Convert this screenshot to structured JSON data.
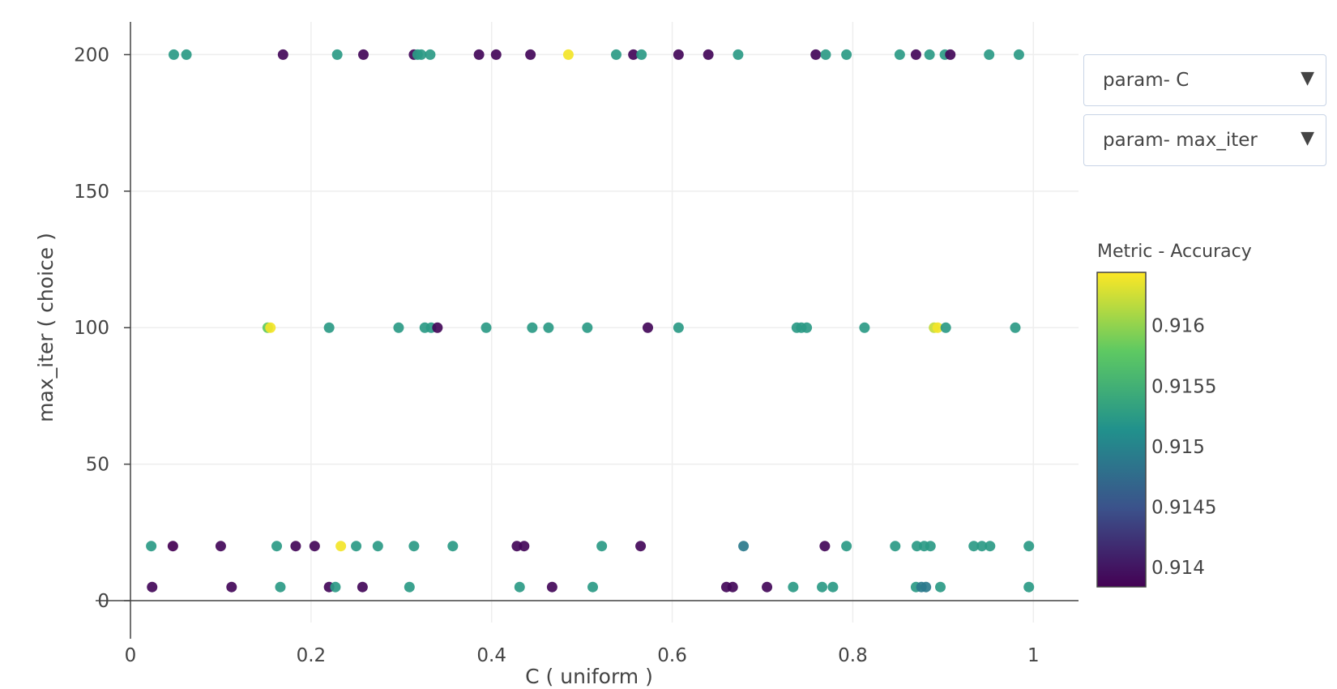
{
  "dropdowns": [
    {
      "label": "param- C",
      "caret": "▼"
    },
    {
      "label": "param- max_iter",
      "caret": "▼"
    }
  ],
  "colorbar": {
    "title": "Metric - Accuracy",
    "ticks": [
      {
        "value": 0.914,
        "label": "0.914"
      },
      {
        "value": 0.9145,
        "label": "0.9145"
      },
      {
        "value": 0.915,
        "label": "0.915"
      },
      {
        "value": 0.9155,
        "label": "0.9155"
      },
      {
        "value": 0.916,
        "label": "0.916"
      }
    ],
    "range": [
      0.91384,
      0.91644
    ],
    "colors": [
      "#440154",
      "#3b528b",
      "#21918c",
      "#5ec962",
      "#fde725"
    ]
  },
  "chart_data": {
    "type": "scatter",
    "xlabel": "C ( uniform )",
    "ylabel": "max_iter ( choice )",
    "xlim": [
      0,
      1.05
    ],
    "ylim": [
      -8,
      212
    ],
    "xticks": [
      {
        "value": 0,
        "label": "0"
      },
      {
        "value": 0.2,
        "label": "0.2"
      },
      {
        "value": 0.4,
        "label": "0.4"
      },
      {
        "value": 0.6,
        "label": "0.6"
      },
      {
        "value": 0.8,
        "label": "0.8"
      },
      {
        "value": 1,
        "label": "1"
      }
    ],
    "yticks": [
      {
        "value": 0,
        "label": "0"
      },
      {
        "value": 50,
        "label": "50"
      },
      {
        "value": 100,
        "label": "100"
      },
      {
        "value": 150,
        "label": "150"
      },
      {
        "value": 200,
        "label": "200"
      }
    ],
    "grid": true,
    "colorscale": "viridis",
    "points": [
      {
        "x": 0.048,
        "y": 200,
        "acc": 0.91525
      },
      {
        "x": 0.062,
        "y": 200,
        "acc": 0.91525
      },
      {
        "x": 0.169,
        "y": 200,
        "acc": 0.9139
      },
      {
        "x": 0.229,
        "y": 200,
        "acc": 0.91525
      },
      {
        "x": 0.258,
        "y": 200,
        "acc": 0.9139
      },
      {
        "x": 0.314,
        "y": 200,
        "acc": 0.9139
      },
      {
        "x": 0.318,
        "y": 200,
        "acc": 0.91525
      },
      {
        "x": 0.322,
        "y": 200,
        "acc": 0.91525
      },
      {
        "x": 0.332,
        "y": 200,
        "acc": 0.91525
      },
      {
        "x": 0.386,
        "y": 200,
        "acc": 0.9139
      },
      {
        "x": 0.405,
        "y": 200,
        "acc": 0.9139
      },
      {
        "x": 0.443,
        "y": 200,
        "acc": 0.9139
      },
      {
        "x": 0.485,
        "y": 200,
        "acc": 0.9164
      },
      {
        "x": 0.538,
        "y": 200,
        "acc": 0.91525
      },
      {
        "x": 0.557,
        "y": 200,
        "acc": 0.9139
      },
      {
        "x": 0.566,
        "y": 200,
        "acc": 0.91525
      },
      {
        "x": 0.607,
        "y": 200,
        "acc": 0.9139
      },
      {
        "x": 0.64,
        "y": 200,
        "acc": 0.9139
      },
      {
        "x": 0.673,
        "y": 200,
        "acc": 0.91525
      },
      {
        "x": 0.759,
        "y": 200,
        "acc": 0.9139
      },
      {
        "x": 0.77,
        "y": 200,
        "acc": 0.91525
      },
      {
        "x": 0.793,
        "y": 200,
        "acc": 0.91525
      },
      {
        "x": 0.852,
        "y": 200,
        "acc": 0.91525
      },
      {
        "x": 0.87,
        "y": 200,
        "acc": 0.9139
      },
      {
        "x": 0.885,
        "y": 200,
        "acc": 0.91525
      },
      {
        "x": 0.902,
        "y": 200,
        "acc": 0.91525
      },
      {
        "x": 0.908,
        "y": 200,
        "acc": 0.9139
      },
      {
        "x": 0.951,
        "y": 200,
        "acc": 0.91525
      },
      {
        "x": 0.984,
        "y": 200,
        "acc": 0.91525
      },
      {
        "x": 0.152,
        "y": 100,
        "acc": 0.9158
      },
      {
        "x": 0.155,
        "y": 100,
        "acc": 0.9164
      },
      {
        "x": 0.22,
        "y": 100,
        "acc": 0.91525
      },
      {
        "x": 0.297,
        "y": 100,
        "acc": 0.91525
      },
      {
        "x": 0.326,
        "y": 100,
        "acc": 0.91525
      },
      {
        "x": 0.333,
        "y": 100,
        "acc": 0.91525
      },
      {
        "x": 0.34,
        "y": 100,
        "acc": 0.9139
      },
      {
        "x": 0.394,
        "y": 100,
        "acc": 0.91525
      },
      {
        "x": 0.445,
        "y": 100,
        "acc": 0.91525
      },
      {
        "x": 0.463,
        "y": 100,
        "acc": 0.91525
      },
      {
        "x": 0.506,
        "y": 100,
        "acc": 0.91525
      },
      {
        "x": 0.573,
        "y": 100,
        "acc": 0.9139
      },
      {
        "x": 0.607,
        "y": 100,
        "acc": 0.91525
      },
      {
        "x": 0.738,
        "y": 100,
        "acc": 0.91525
      },
      {
        "x": 0.743,
        "y": 100,
        "acc": 0.91525
      },
      {
        "x": 0.749,
        "y": 100,
        "acc": 0.91525
      },
      {
        "x": 0.813,
        "y": 100,
        "acc": 0.91525
      },
      {
        "x": 0.89,
        "y": 100,
        "acc": 0.9162
      },
      {
        "x": 0.894,
        "y": 100,
        "acc": 0.9164
      },
      {
        "x": 0.903,
        "y": 100,
        "acc": 0.91525
      },
      {
        "x": 0.98,
        "y": 100,
        "acc": 0.91525
      },
      {
        "x": 0.023,
        "y": 20,
        "acc": 0.91525
      },
      {
        "x": 0.047,
        "y": 20,
        "acc": 0.9138
      },
      {
        "x": 0.1,
        "y": 20,
        "acc": 0.9139
      },
      {
        "x": 0.162,
        "y": 20,
        "acc": 0.91525
      },
      {
        "x": 0.183,
        "y": 20,
        "acc": 0.9139
      },
      {
        "x": 0.204,
        "y": 20,
        "acc": 0.9139
      },
      {
        "x": 0.233,
        "y": 20,
        "acc": 0.9164
      },
      {
        "x": 0.25,
        "y": 20,
        "acc": 0.91525
      },
      {
        "x": 0.274,
        "y": 20,
        "acc": 0.91525
      },
      {
        "x": 0.314,
        "y": 20,
        "acc": 0.91525
      },
      {
        "x": 0.357,
        "y": 20,
        "acc": 0.91525
      },
      {
        "x": 0.428,
        "y": 20,
        "acc": 0.9139
      },
      {
        "x": 0.436,
        "y": 20,
        "acc": 0.9139
      },
      {
        "x": 0.522,
        "y": 20,
        "acc": 0.91525
      },
      {
        "x": 0.565,
        "y": 20,
        "acc": 0.9139
      },
      {
        "x": 0.679,
        "y": 20,
        "acc": 0.9149
      },
      {
        "x": 0.769,
        "y": 20,
        "acc": 0.9139
      },
      {
        "x": 0.793,
        "y": 20,
        "acc": 0.91525
      },
      {
        "x": 0.847,
        "y": 20,
        "acc": 0.91525
      },
      {
        "x": 0.871,
        "y": 20,
        "acc": 0.91525
      },
      {
        "x": 0.879,
        "y": 20,
        "acc": 0.91525
      },
      {
        "x": 0.886,
        "y": 20,
        "acc": 0.91525
      },
      {
        "x": 0.934,
        "y": 20,
        "acc": 0.91525
      },
      {
        "x": 0.943,
        "y": 20,
        "acc": 0.91525
      },
      {
        "x": 0.952,
        "y": 20,
        "acc": 0.91525
      },
      {
        "x": 0.995,
        "y": 20,
        "acc": 0.91525
      },
      {
        "x": 0.024,
        "y": 5,
        "acc": 0.9139
      },
      {
        "x": 0.112,
        "y": 5,
        "acc": 0.9139
      },
      {
        "x": 0.166,
        "y": 5,
        "acc": 0.91525
      },
      {
        "x": 0.22,
        "y": 5,
        "acc": 0.9139
      },
      {
        "x": 0.227,
        "y": 5,
        "acc": 0.91525
      },
      {
        "x": 0.257,
        "y": 5,
        "acc": 0.9139
      },
      {
        "x": 0.309,
        "y": 5,
        "acc": 0.91525
      },
      {
        "x": 0.431,
        "y": 5,
        "acc": 0.91525
      },
      {
        "x": 0.467,
        "y": 5,
        "acc": 0.9139
      },
      {
        "x": 0.512,
        "y": 5,
        "acc": 0.91525
      },
      {
        "x": 0.66,
        "y": 5,
        "acc": 0.9139
      },
      {
        "x": 0.667,
        "y": 5,
        "acc": 0.9139
      },
      {
        "x": 0.705,
        "y": 5,
        "acc": 0.9139
      },
      {
        "x": 0.734,
        "y": 5,
        "acc": 0.91525
      },
      {
        "x": 0.766,
        "y": 5,
        "acc": 0.91525
      },
      {
        "x": 0.778,
        "y": 5,
        "acc": 0.91525
      },
      {
        "x": 0.87,
        "y": 5,
        "acc": 0.91525
      },
      {
        "x": 0.876,
        "y": 5,
        "acc": 0.9149
      },
      {
        "x": 0.881,
        "y": 5,
        "acc": 0.9149
      },
      {
        "x": 0.897,
        "y": 5,
        "acc": 0.91525
      },
      {
        "x": 0.995,
        "y": 5,
        "acc": 0.91525
      }
    ]
  }
}
